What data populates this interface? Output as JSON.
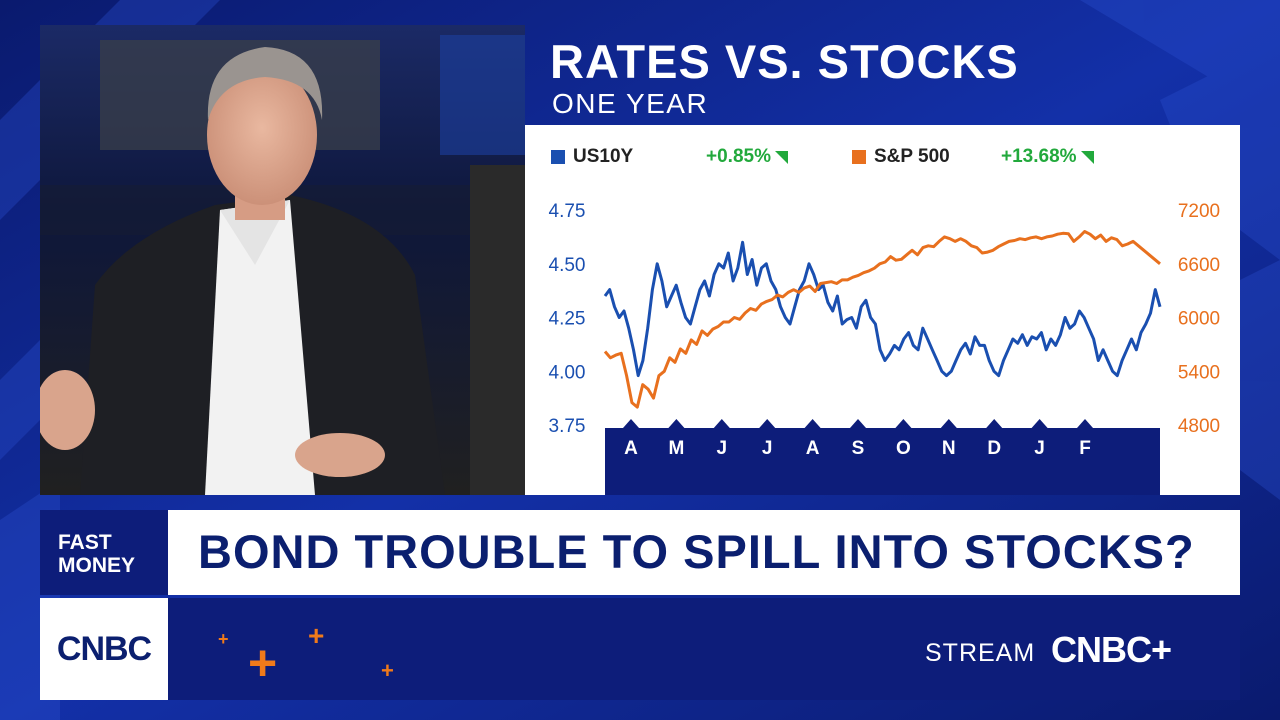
{
  "chart_header": {
    "title": "RATES VS. STOCKS",
    "subtitle": "ONE YEAR"
  },
  "legend": [
    {
      "label": "US10Y",
      "change": "+0.85%",
      "color": "#1a4fb0"
    },
    {
      "label": "S&P 500",
      "change": "+13.68%",
      "color": "#e8701e"
    }
  ],
  "lower_third": {
    "show_name_line1": "FAST",
    "show_name_line2": "MONEY",
    "headline": "BOND TROUBLE TO SPILL INTO STOCKS?",
    "network_logo": "CNBC",
    "stream_label": "STREAM",
    "stream_logo": "CNBC+"
  },
  "colors": {
    "brand_navy": "#0d1d7a",
    "headline_text": "#0b1f6f",
    "us10y": "#1a4fb0",
    "sp500": "#e8701e",
    "positive_change": "#22a93c",
    "accent_orange": "#f07a1a"
  },
  "icons": [
    "up-triangle-icon",
    "plus-icon"
  ],
  "chart_data": {
    "type": "line",
    "x_axis_labels": [
      "A",
      "M",
      "J",
      "J",
      "A",
      "S",
      "O",
      "N",
      "D",
      "J",
      "F"
    ],
    "left_axis": {
      "ticks": [
        3.75,
        4.0,
        4.25,
        4.5,
        4.75
      ],
      "tick_labels": [
        "3.75",
        "4.00",
        "4.25",
        "4.50",
        "4.75"
      ],
      "range": [
        3.75,
        4.75
      ]
    },
    "right_axis": {
      "ticks": [
        4800,
        5400,
        6000,
        6600,
        7200
      ],
      "tick_labels": [
        "4800",
        "5400",
        "6000",
        "6600",
        "7200"
      ],
      "range": [
        4800,
        7200
      ]
    },
    "grid": false,
    "legend_position": "top",
    "series": [
      {
        "name": "US10Y",
        "axis": "left",
        "values": [
          4.35,
          4.38,
          4.3,
          4.25,
          4.28,
          4.2,
          4.1,
          3.98,
          4.05,
          4.2,
          4.38,
          4.5,
          4.42,
          4.3,
          4.35,
          4.4,
          4.32,
          4.25,
          4.22,
          4.3,
          4.38,
          4.42,
          4.35,
          4.45,
          4.5,
          4.48,
          4.55,
          4.42,
          4.48,
          4.6,
          4.45,
          4.52,
          4.4,
          4.48,
          4.5,
          4.42,
          4.38,
          4.3,
          4.25,
          4.22,
          4.3,
          4.38,
          4.42,
          4.5,
          4.45,
          4.38,
          4.4,
          4.32,
          4.28,
          4.35,
          4.22,
          4.24,
          4.25,
          4.2,
          4.3,
          4.33,
          4.25,
          4.22,
          4.1,
          4.05,
          4.08,
          4.12,
          4.1,
          4.15,
          4.18,
          4.12,
          4.1,
          4.2,
          4.15,
          4.1,
          4.05,
          4.0,
          3.98,
          4.0,
          4.05,
          4.1,
          4.13,
          4.08,
          4.16,
          4.12,
          4.12,
          4.05,
          4.0,
          3.98,
          4.05,
          4.1,
          4.15,
          4.13,
          4.17,
          4.12,
          4.16,
          4.15,
          4.18,
          4.1,
          4.15,
          4.12,
          4.17,
          4.25,
          4.2,
          4.22,
          4.28,
          4.25,
          4.2,
          4.15,
          4.05,
          4.1,
          4.05,
          4.0,
          3.98,
          4.05,
          4.1,
          4.15,
          4.1,
          4.18,
          4.22,
          4.27,
          4.38,
          4.3
        ]
      },
      {
        "name": "S&P 500",
        "axis": "right",
        "values": [
          5620,
          5550,
          5580,
          5600,
          5350,
          5050,
          5000,
          5250,
          5200,
          5100,
          5350,
          5400,
          5550,
          5500,
          5650,
          5600,
          5750,
          5700,
          5850,
          5800,
          5870,
          5900,
          5950,
          5950,
          6000,
          5980,
          6050,
          6100,
          6080,
          6150,
          6180,
          6200,
          6250,
          6230,
          6280,
          6310,
          6280,
          6330,
          6350,
          6290,
          6380,
          6390,
          6400,
          6380,
          6420,
          6420,
          6450,
          6470,
          6500,
          6520,
          6550,
          6600,
          6620,
          6680,
          6640,
          6650,
          6700,
          6750,
          6700,
          6780,
          6800,
          6790,
          6850,
          6900,
          6880,
          6850,
          6880,
          6850,
          6800,
          6780,
          6720,
          6730,
          6750,
          6790,
          6820,
          6850,
          6860,
          6880,
          6870,
          6890,
          6900,
          6880,
          6900,
          6910,
          6930,
          6940,
          6935,
          6850,
          6900,
          6960,
          6930,
          6880,
          6920,
          6850,
          6890,
          6870,
          6800,
          6820,
          6850,
          6800,
          6750,
          6700,
          6650,
          6600
        ]
      }
    ]
  }
}
